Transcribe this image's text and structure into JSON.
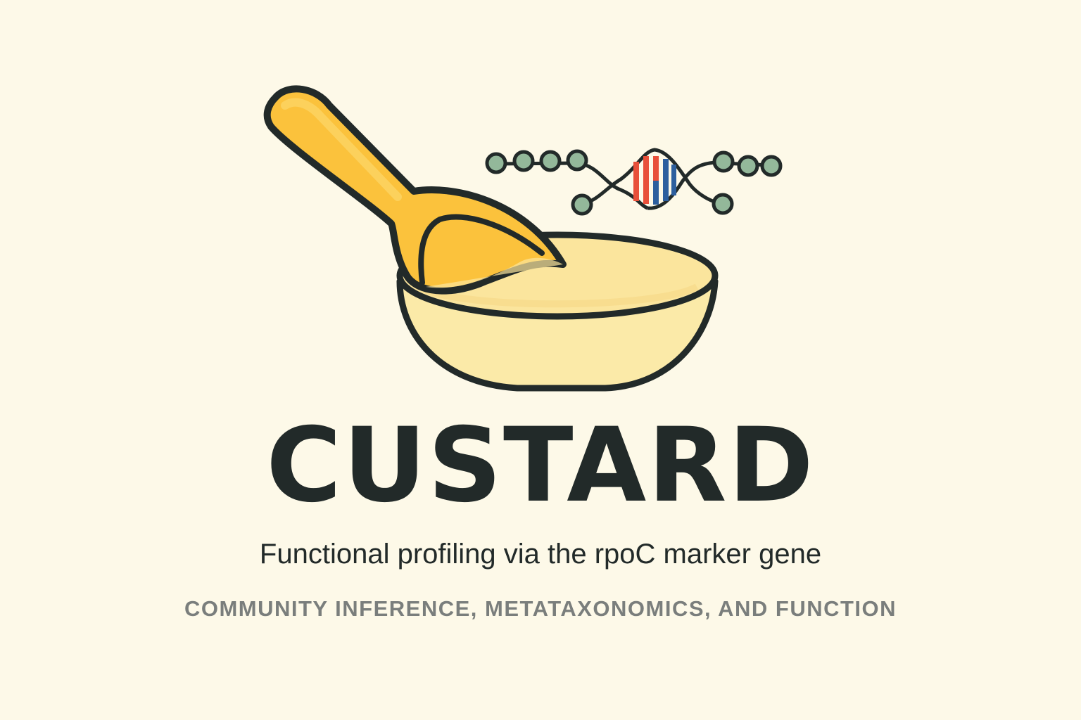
{
  "logo": {
    "icon": "custard-bowl-spoon-dna-icon",
    "colors": {
      "background": "#fdf9e8",
      "outline": "#222a29",
      "custard": "#fbe59d",
      "spoon": "#fbc23c",
      "dna_node": "#93b89a",
      "dna_red": "#e8503a",
      "dna_blue": "#2d5f9e"
    }
  },
  "title": "CUSTARD",
  "subtitle": "Functional profiling via the rpoC marker gene",
  "tagline": "COMMUNITY INFERENCE, METATAXONOMICS, AND FUNCTION"
}
